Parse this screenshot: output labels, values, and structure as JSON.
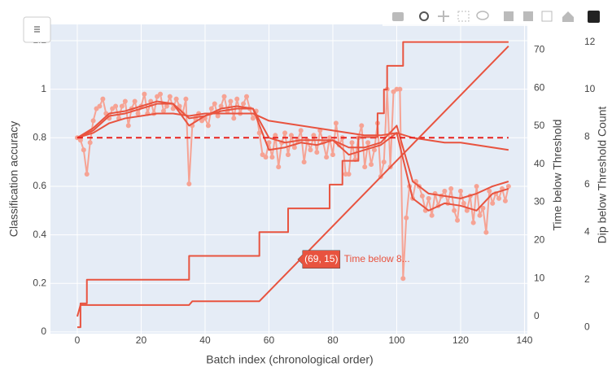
{
  "chart_data": {
    "type": "line",
    "xlabel": "Batch index (chronological order)",
    "ylabel": "Classification accuracy",
    "y2label": "Time below Threshold",
    "y3label": "Dip below Threshold Count",
    "xlim": [
      -8.4,
      140.9
    ],
    "xticks": [
      0,
      20,
      40,
      60,
      80,
      100,
      120,
      140
    ],
    "ylim": [
      -0.007,
      1.267
    ],
    "yticks": [
      0,
      0.2,
      0.4,
      0.6,
      0.8,
      1,
      1.2
    ],
    "y2lim": [
      -4.5,
      76.7
    ],
    "y2ticks": [
      0,
      10,
      20,
      30,
      40,
      50,
      60,
      70
    ],
    "y3lim": [
      -0.27,
      12.74
    ],
    "y3ticks": [
      0,
      2,
      4,
      6,
      8,
      10,
      12
    ],
    "grid": true,
    "series": [
      {
        "color": "#f6a394",
        "mode": "lines+markers",
        "axis": "y",
        "x": [
          0,
          1,
          2,
          3,
          4,
          5,
          6,
          7,
          8,
          9,
          10,
          11,
          12,
          13,
          14,
          15,
          16,
          17,
          18,
          19,
          20,
          21,
          22,
          23,
          24,
          25,
          26,
          27,
          28,
          29,
          30,
          31,
          32,
          33,
          34,
          35,
          36,
          37,
          38,
          39,
          40,
          41,
          42,
          43,
          44,
          45,
          46,
          47,
          48,
          49,
          50,
          51,
          52,
          53,
          54,
          55,
          56,
          57,
          58,
          59,
          60,
          61,
          62,
          63,
          64,
          65,
          66,
          67,
          68,
          69,
          70,
          71,
          72,
          73,
          74,
          75,
          76,
          77,
          78,
          79,
          80,
          81,
          82,
          83,
          84,
          85,
          86,
          87,
          88,
          89,
          90,
          91,
          92,
          93,
          94,
          95,
          96,
          97,
          98,
          99,
          100,
          101,
          102,
          103,
          104,
          105,
          106,
          107,
          108,
          109,
          110,
          111,
          112,
          113,
          114,
          115,
          116,
          117,
          118,
          119,
          120,
          121,
          122,
          123,
          124,
          125,
          126,
          127,
          128,
          129,
          130,
          131,
          132,
          133,
          134,
          135
        ],
        "values": [
          0.8,
          0.79,
          0.75,
          0.65,
          0.78,
          0.87,
          0.92,
          0.93,
          0.96,
          0.9,
          0.88,
          0.92,
          0.93,
          0.88,
          0.93,
          0.95,
          0.85,
          0.92,
          0.95,
          0.9,
          0.93,
          0.98,
          0.9,
          0.95,
          0.9,
          0.97,
          0.98,
          0.91,
          0.93,
          0.97,
          0.92,
          0.96,
          0.93,
          0.9,
          0.96,
          0.61,
          0.85,
          0.88,
          0.9,
          0.87,
          0.88,
          0.85,
          0.92,
          0.94,
          0.89,
          0.93,
          0.97,
          0.91,
          0.95,
          0.88,
          0.96,
          0.9,
          0.94,
          0.97,
          0.92,
          0.88,
          0.91,
          0.82,
          0.73,
          0.72,
          0.78,
          0.72,
          0.81,
          0.68,
          0.78,
          0.82,
          0.73,
          0.81,
          0.76,
          0.79,
          0.83,
          0.7,
          0.79,
          0.75,
          0.81,
          0.74,
          0.83,
          0.78,
          0.72,
          0.8,
          0.73,
          0.86,
          0.77,
          0.8,
          0.65,
          0.65,
          0.78,
          0.71,
          0.8,
          0.85,
          0.68,
          0.78,
          0.69,
          0.75,
          0.86,
          0.64,
          0.7,
          1.0,
          0.68,
          0.99,
          1.0,
          1.0,
          0.22,
          0.47,
          0.6,
          0.55,
          0.62,
          0.6,
          0.56,
          0.5,
          0.55,
          0.48,
          0.57,
          0.52,
          0.56,
          0.58,
          0.53,
          0.59,
          0.5,
          0.46,
          0.58,
          0.53,
          0.5,
          0.56,
          0.45,
          0.6,
          0.48,
          0.51,
          0.41,
          0.58,
          0.53,
          0.57,
          0.55,
          0.59,
          0.54,
          0.6
        ]
      },
      {
        "color": "#e8533f",
        "mode": "lines",
        "axis": "y",
        "x": [
          0,
          5,
          10,
          15,
          20,
          25,
          30,
          35,
          40,
          45,
          50,
          55,
          60,
          65,
          70,
          75,
          80,
          85,
          90,
          95,
          100,
          105,
          110,
          115,
          120,
          125,
          130,
          135
        ],
        "values": [
          0.8,
          0.84,
          0.9,
          0.91,
          0.93,
          0.95,
          0.94,
          0.85,
          0.89,
          0.92,
          0.93,
          0.92,
          0.75,
          0.76,
          0.78,
          0.77,
          0.79,
          0.73,
          0.75,
          0.77,
          0.82,
          0.55,
          0.5,
          0.53,
          0.52,
          0.5,
          0.57,
          0.59
        ]
      },
      {
        "color": "#e8533f",
        "mode": "lines",
        "axis": "y",
        "x": [
          0,
          5,
          10,
          15,
          20,
          25,
          30,
          35,
          40,
          45,
          50,
          55,
          60,
          65,
          70,
          75,
          80,
          85,
          90,
          95,
          100,
          105,
          110,
          115,
          120,
          125,
          130,
          135
        ],
        "values": [
          0.8,
          0.83,
          0.89,
          0.9,
          0.92,
          0.94,
          0.94,
          0.88,
          0.89,
          0.91,
          0.92,
          0.92,
          0.8,
          0.78,
          0.79,
          0.79,
          0.79,
          0.76,
          0.76,
          0.78,
          0.85,
          0.62,
          0.57,
          0.56,
          0.55,
          0.57,
          0.6,
          0.62
        ]
      },
      {
        "color": "#e8533f",
        "mode": "lines",
        "axis": "y",
        "x": [
          0,
          5,
          10,
          15,
          20,
          25,
          30,
          35,
          40,
          45,
          50,
          55,
          60,
          65,
          70,
          75,
          80,
          85,
          90,
          95,
          100,
          105,
          110,
          115,
          120,
          125,
          130,
          135
        ],
        "values": [
          0.8,
          0.82,
          0.86,
          0.88,
          0.89,
          0.9,
          0.9,
          0.89,
          0.9,
          0.9,
          0.9,
          0.9,
          0.87,
          0.86,
          0.85,
          0.84,
          0.83,
          0.82,
          0.81,
          0.81,
          0.82,
          0.8,
          0.79,
          0.78,
          0.78,
          0.77,
          0.76,
          0.75
        ]
      },
      {
        "color": "#e8231f",
        "mode": "lines",
        "dash": true,
        "axis": "y",
        "x": [
          0,
          135
        ],
        "values": [
          0.8,
          0.8
        ]
      },
      {
        "color": "#e8533f",
        "mode": "lines",
        "axis": "y2",
        "x": [
          0,
          1,
          35,
          36,
          57,
          135
        ],
        "values": [
          0,
          3,
          3,
          4,
          4,
          71
        ]
      },
      {
        "color": "#e8533f",
        "mode": "lines",
        "shape": "hv",
        "axis": "y3",
        "x": [
          0,
          1,
          3,
          35,
          57,
          66,
          79,
          83,
          88,
          94,
          96,
          97,
          102,
          135
        ],
        "values": [
          0,
          1,
          2,
          3,
          4,
          5,
          6,
          7,
          8,
          9,
          10,
          11,
          12,
          12
        ]
      }
    ],
    "hover": {
      "x": 69,
      "y": 15,
      "axis": "y2",
      "text": "(69, 15)",
      "name": "Time below 8..."
    }
  }
}
